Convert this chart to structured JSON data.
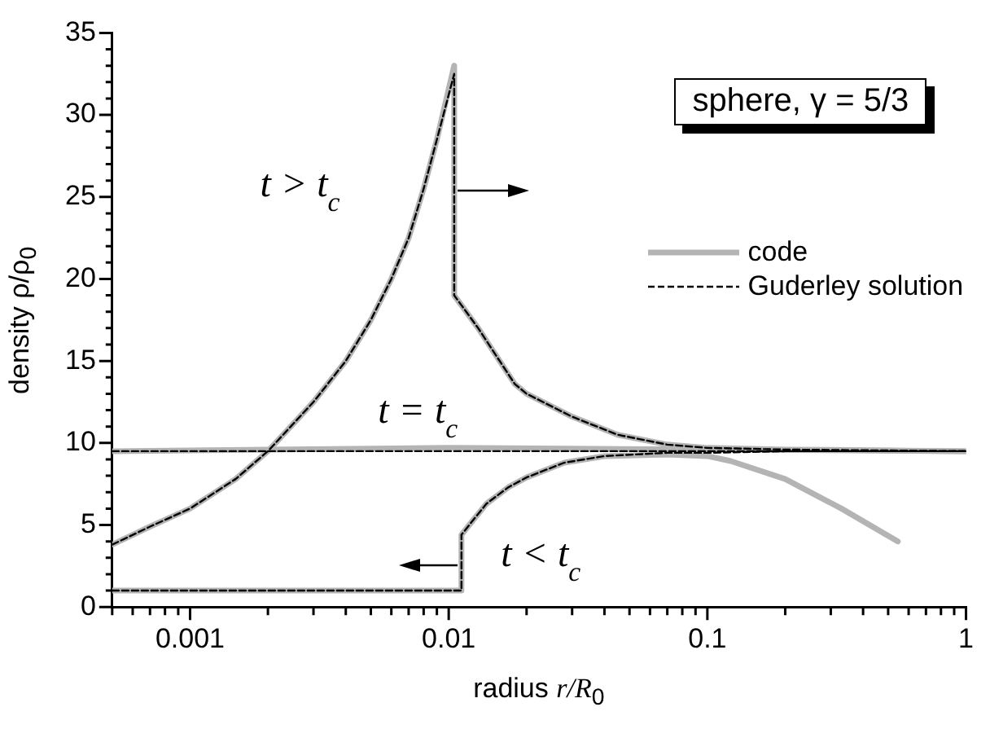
{
  "chart_data": {
    "type": "line",
    "xlabel": "radius  r/R$_{0}$",
    "ylabel": "density  ρ/ρ$_{0}$",
    "log": "x",
    "grid": false,
    "legend": "right",
    "marker": "none",
    "xlim": [
      0.0005,
      1
    ],
    "xticks": [
      {
        "value": 0.0005,
        "label": null
      },
      {
        "value": 0.0006,
        "label": null
      },
      {
        "value": 0.0007,
        "label": null
      },
      {
        "value": 0.0008,
        "label": null
      },
      {
        "value": 0.0009,
        "label": null
      },
      {
        "value": 0.001,
        "label": "0.001"
      },
      {
        "value": 0.002,
        "label": null
      },
      {
        "value": 0.003,
        "label": null
      },
      {
        "value": 0.004,
        "label": null
      },
      {
        "value": 0.005,
        "label": null
      },
      {
        "value": 0.006,
        "label": null
      },
      {
        "value": 0.007,
        "label": null
      },
      {
        "value": 0.008,
        "label": null
      },
      {
        "value": 0.009,
        "label": null
      },
      {
        "value": 0.01,
        "label": "0.01"
      },
      {
        "value": 0.02,
        "label": null
      },
      {
        "value": 0.03,
        "label": null
      },
      {
        "value": 0.04,
        "label": null
      },
      {
        "value": 0.05,
        "label": null
      },
      {
        "value": 0.06,
        "label": null
      },
      {
        "value": 0.07,
        "label": null
      },
      {
        "value": 0.08,
        "label": null
      },
      {
        "value": 0.09,
        "label": null
      },
      {
        "value": 0.1,
        "label": "0.1"
      },
      {
        "value": 0.2,
        "label": null
      },
      {
        "value": 0.3,
        "label": null
      },
      {
        "value": 0.4,
        "label": null
      },
      {
        "value": 0.5,
        "label": null
      },
      {
        "value": 0.6,
        "label": null
      },
      {
        "value": 0.7,
        "label": null
      },
      {
        "value": 0.8,
        "label": null
      },
      {
        "value": 0.9,
        "label": null
      },
      {
        "value": 1,
        "label": "1"
      }
    ],
    "ylim": [
      0,
      35
    ],
    "yticks": [
      0,
      {
        "value": 1,
        "label": null
      },
      {
        "value": 2,
        "label": null
      },
      {
        "value": 3,
        "label": null
      },
      {
        "value": 4,
        "label": null
      },
      5,
      {
        "value": 6,
        "label": null
      },
      {
        "value": 7,
        "label": null
      },
      {
        "value": 8,
        "label": null
      },
      {
        "value": 9,
        "label": null
      },
      10,
      {
        "value": 11,
        "label": null
      },
      {
        "value": 12,
        "label": null
      },
      {
        "value": 13,
        "label": null
      },
      {
        "value": 14,
        "label": null
      },
      15,
      {
        "value": 16,
        "label": null
      },
      {
        "value": 17,
        "label": null
      },
      {
        "value": 18,
        "label": null
      },
      {
        "value": 19,
        "label": null
      },
      20,
      {
        "value": 21,
        "label": null
      },
      {
        "value": 22,
        "label": null
      },
      {
        "value": 23,
        "label": null
      },
      {
        "value": 24,
        "label": null
      },
      25,
      {
        "value": 26,
        "label": null
      },
      {
        "value": 27,
        "label": null
      },
      {
        "value": 28,
        "label": null
      },
      {
        "value": 29,
        "label": null
      },
      30,
      {
        "value": 31,
        "label": null
      },
      {
        "value": 32,
        "label": null
      },
      {
        "value": 33,
        "label": null
      },
      {
        "value": 34,
        "label": null
      },
      35
    ],
    "series": [
      {
        "name": "code",
        "color": "#b4b4b4",
        "line_style": "solid",
        "x": [
          0.0005,
          0.0007,
          0.001,
          0.0015,
          0.002,
          0.003,
          0.004,
          0.005,
          0.006,
          0.007,
          0.008,
          0.009,
          0.0105,
          0.0105,
          0.013,
          0.015,
          0.018,
          0.02,
          0.03,
          0.045,
          0.07,
          0.1,
          0.2,
          1
        ],
        "values": [
          3.8,
          4.9,
          6.0,
          7.8,
          9.5,
          12.5,
          15.0,
          17.5,
          20.0,
          22.5,
          25.5,
          28.5,
          33,
          19,
          17.0,
          15.5,
          13.6,
          13.0,
          11.6,
          10.5,
          9.9,
          9.7,
          9.6,
          9.5
        ]
      },
      {
        "name": "Guderley solution",
        "color": "#000000",
        "line_style": "dashed",
        "x": [
          0.0005,
          0.0007,
          0.001,
          0.0015,
          0.002,
          0.003,
          0.004,
          0.005,
          0.006,
          0.007,
          0.008,
          0.009,
          0.0105,
          0.0105,
          0.013,
          0.015,
          0.018,
          0.02,
          0.03,
          0.045,
          0.07,
          0.1,
          0.2,
          1
        ],
        "values": [
          3.8,
          4.9,
          6.0,
          7.8,
          9.5,
          12.5,
          15.0,
          17.5,
          20.0,
          22.5,
          25.5,
          28.5,
          32.5,
          19,
          17.0,
          15.5,
          13.6,
          13.0,
          11.6,
          10.5,
          9.9,
          9.7,
          9.6,
          9.5
        ]
      },
      {
        "color": "#b4b4b4",
        "line_style": "solid",
        "x": [
          0.0005,
          0.01,
          0.1,
          1
        ],
        "values": [
          9.5,
          9.7,
          9.6,
          9.5
        ]
      },
      {
        "color": "#000000",
        "line_style": "dashed",
        "x": [
          0.0005,
          1
        ],
        "values": [
          9.5,
          9.5
        ]
      },
      {
        "color": "#b4b4b4",
        "line_style": "solid",
        "x": [
          0.0005,
          0.0112,
          0.0112,
          0.012,
          0.014,
          0.017,
          0.02,
          0.028,
          0.04,
          0.07,
          0.1,
          0.123,
          0.2,
          0.33,
          0.545
        ],
        "values": [
          1.0,
          1.0,
          4.4,
          5.0,
          6.3,
          7.3,
          7.9,
          8.8,
          9.2,
          9.3,
          9.2,
          8.9,
          7.8,
          6.0,
          4.0
        ]
      },
      {
        "color": "#000000",
        "line_style": "dashed",
        "x": [
          0.0005,
          0.0112,
          0.0112,
          0.012,
          0.014,
          0.017,
          0.02,
          0.028,
          0.04,
          0.07,
          0.1,
          0.2,
          1
        ],
        "values": [
          1.0,
          1.0,
          4.4,
          5.0,
          6.3,
          7.3,
          7.9,
          8.8,
          9.2,
          9.4,
          9.4,
          9.5,
          9.5
        ]
      }
    ],
    "annotations": [
      "sphere, γ = 5/3",
      "t > t$_{c}$",
      "t = t$_{c}$",
      "t < t$_{c}$"
    ]
  }
}
